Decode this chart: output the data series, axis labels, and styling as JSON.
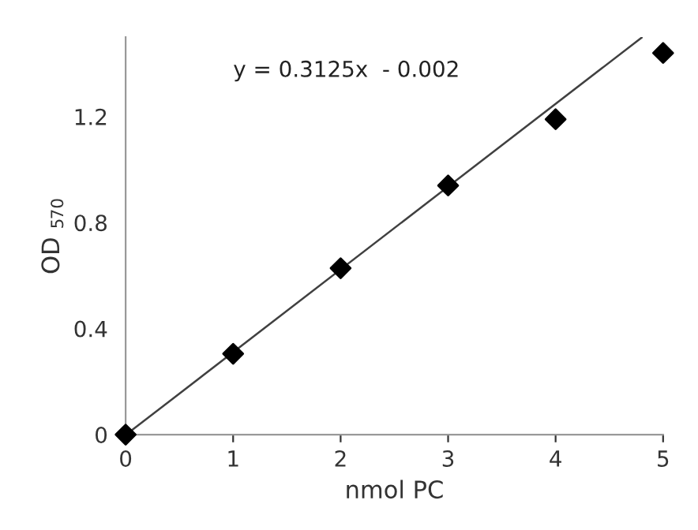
{
  "chart_data": {
    "type": "scatter",
    "xlabel": "nmol PC",
    "ylabel": "OD $_{570}$",
    "xlim": [
      0,
      5
    ],
    "xticks": [
      0,
      1,
      2,
      3,
      4,
      5
    ],
    "ylim": [
      0,
      1.5
    ],
    "yticks": [
      0,
      {
        "value": 0.4,
        "label": "0.4"
      },
      {
        "value": 0.8,
        "label": "0.8"
      },
      {
        "value": 1.2,
        "label": "1.2"
      }
    ],
    "grid": false,
    "legend": false,
    "marker": "diamond",
    "annotations": [
      "y = 0.3125x  - 0.002"
    ],
    "series": [
      {
        "color": "#000000",
        "x": [
          0,
          1,
          2,
          3,
          4,
          5
        ],
        "values": [
          0,
          0.305,
          0.628,
          0.94,
          1.19,
          1.44
        ]
      },
      {
        "type": "line",
        "color": "#404040",
        "x": [
          0.05,
          4.8
        ],
        "values": [
          0.014,
          1.498
        ],
        "marker": "none",
        "line_style": "solid"
      }
    ]
  }
}
